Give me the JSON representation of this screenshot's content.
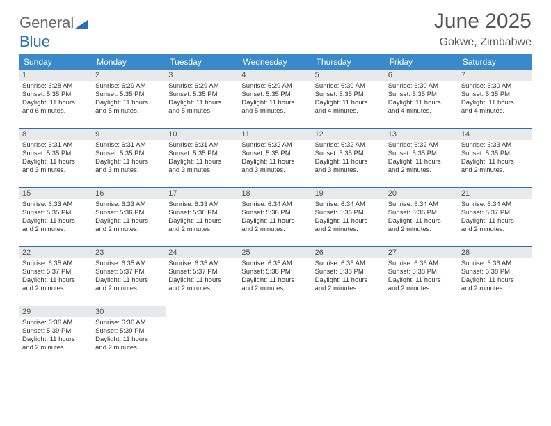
{
  "brand": {
    "part1": "General",
    "part2": "Blue"
  },
  "title": "June 2025",
  "location": "Gokwe, Zimbabwe",
  "colors": {
    "header_band": "#3a8ac9",
    "week_divider": "#2b6fb3",
    "daynum_bg": "#e8e9ea",
    "text": "#333333",
    "title": "#555555"
  },
  "day_headers": [
    "Sunday",
    "Monday",
    "Tuesday",
    "Wednesday",
    "Thursday",
    "Friday",
    "Saturday"
  ],
  "weeks": [
    [
      {
        "n": "1",
        "sr": "Sunrise: 6:28 AM",
        "ss": "Sunset: 5:35 PM",
        "d1": "Daylight: 11 hours",
        "d2": "and 6 minutes."
      },
      {
        "n": "2",
        "sr": "Sunrise: 6:29 AM",
        "ss": "Sunset: 5:35 PM",
        "d1": "Daylight: 11 hours",
        "d2": "and 5 minutes."
      },
      {
        "n": "3",
        "sr": "Sunrise: 6:29 AM",
        "ss": "Sunset: 5:35 PM",
        "d1": "Daylight: 11 hours",
        "d2": "and 5 minutes."
      },
      {
        "n": "4",
        "sr": "Sunrise: 6:29 AM",
        "ss": "Sunset: 5:35 PM",
        "d1": "Daylight: 11 hours",
        "d2": "and 5 minutes."
      },
      {
        "n": "5",
        "sr": "Sunrise: 6:30 AM",
        "ss": "Sunset: 5:35 PM",
        "d1": "Daylight: 11 hours",
        "d2": "and 4 minutes."
      },
      {
        "n": "6",
        "sr": "Sunrise: 6:30 AM",
        "ss": "Sunset: 5:35 PM",
        "d1": "Daylight: 11 hours",
        "d2": "and 4 minutes."
      },
      {
        "n": "7",
        "sr": "Sunrise: 6:30 AM",
        "ss": "Sunset: 5:35 PM",
        "d1": "Daylight: 11 hours",
        "d2": "and 4 minutes."
      }
    ],
    [
      {
        "n": "8",
        "sr": "Sunrise: 6:31 AM",
        "ss": "Sunset: 5:35 PM",
        "d1": "Daylight: 11 hours",
        "d2": "and 3 minutes."
      },
      {
        "n": "9",
        "sr": "Sunrise: 6:31 AM",
        "ss": "Sunset: 5:35 PM",
        "d1": "Daylight: 11 hours",
        "d2": "and 3 minutes."
      },
      {
        "n": "10",
        "sr": "Sunrise: 6:31 AM",
        "ss": "Sunset: 5:35 PM",
        "d1": "Daylight: 11 hours",
        "d2": "and 3 minutes."
      },
      {
        "n": "11",
        "sr": "Sunrise: 6:32 AM",
        "ss": "Sunset: 5:35 PM",
        "d1": "Daylight: 11 hours",
        "d2": "and 3 minutes."
      },
      {
        "n": "12",
        "sr": "Sunrise: 6:32 AM",
        "ss": "Sunset: 5:35 PM",
        "d1": "Daylight: 11 hours",
        "d2": "and 3 minutes."
      },
      {
        "n": "13",
        "sr": "Sunrise: 6:32 AM",
        "ss": "Sunset: 5:35 PM",
        "d1": "Daylight: 11 hours",
        "d2": "and 2 minutes."
      },
      {
        "n": "14",
        "sr": "Sunrise: 6:33 AM",
        "ss": "Sunset: 5:35 PM",
        "d1": "Daylight: 11 hours",
        "d2": "and 2 minutes."
      }
    ],
    [
      {
        "n": "15",
        "sr": "Sunrise: 6:33 AM",
        "ss": "Sunset: 5:35 PM",
        "d1": "Daylight: 11 hours",
        "d2": "and 2 minutes."
      },
      {
        "n": "16",
        "sr": "Sunrise: 6:33 AM",
        "ss": "Sunset: 5:36 PM",
        "d1": "Daylight: 11 hours",
        "d2": "and 2 minutes."
      },
      {
        "n": "17",
        "sr": "Sunrise: 6:33 AM",
        "ss": "Sunset: 5:36 PM",
        "d1": "Daylight: 11 hours",
        "d2": "and 2 minutes."
      },
      {
        "n": "18",
        "sr": "Sunrise: 6:34 AM",
        "ss": "Sunset: 5:36 PM",
        "d1": "Daylight: 11 hours",
        "d2": "and 2 minutes."
      },
      {
        "n": "19",
        "sr": "Sunrise: 6:34 AM",
        "ss": "Sunset: 5:36 PM",
        "d1": "Daylight: 11 hours",
        "d2": "and 2 minutes."
      },
      {
        "n": "20",
        "sr": "Sunrise: 6:34 AM",
        "ss": "Sunset: 5:36 PM",
        "d1": "Daylight: 11 hours",
        "d2": "and 2 minutes."
      },
      {
        "n": "21",
        "sr": "Sunrise: 6:34 AM",
        "ss": "Sunset: 5:37 PM",
        "d1": "Daylight: 11 hours",
        "d2": "and 2 minutes."
      }
    ],
    [
      {
        "n": "22",
        "sr": "Sunrise: 6:35 AM",
        "ss": "Sunset: 5:37 PM",
        "d1": "Daylight: 11 hours",
        "d2": "and 2 minutes."
      },
      {
        "n": "23",
        "sr": "Sunrise: 6:35 AM",
        "ss": "Sunset: 5:37 PM",
        "d1": "Daylight: 11 hours",
        "d2": "and 2 minutes."
      },
      {
        "n": "24",
        "sr": "Sunrise: 6:35 AM",
        "ss": "Sunset: 5:37 PM",
        "d1": "Daylight: 11 hours",
        "d2": "and 2 minutes."
      },
      {
        "n": "25",
        "sr": "Sunrise: 6:35 AM",
        "ss": "Sunset: 5:38 PM",
        "d1": "Daylight: 11 hours",
        "d2": "and 2 minutes."
      },
      {
        "n": "26",
        "sr": "Sunrise: 6:35 AM",
        "ss": "Sunset: 5:38 PM",
        "d1": "Daylight: 11 hours",
        "d2": "and 2 minutes."
      },
      {
        "n": "27",
        "sr": "Sunrise: 6:36 AM",
        "ss": "Sunset: 5:38 PM",
        "d1": "Daylight: 11 hours",
        "d2": "and 2 minutes."
      },
      {
        "n": "28",
        "sr": "Sunrise: 6:36 AM",
        "ss": "Sunset: 5:38 PM",
        "d1": "Daylight: 11 hours",
        "d2": "and 2 minutes."
      }
    ],
    [
      {
        "n": "29",
        "sr": "Sunrise: 6:36 AM",
        "ss": "Sunset: 5:39 PM",
        "d1": "Daylight: 11 hours",
        "d2": "and 2 minutes."
      },
      {
        "n": "30",
        "sr": "Sunrise: 6:36 AM",
        "ss": "Sunset: 5:39 PM",
        "d1": "Daylight: 11 hours",
        "d2": "and 2 minutes."
      },
      {
        "empty": true
      },
      {
        "empty": true
      },
      {
        "empty": true
      },
      {
        "empty": true
      },
      {
        "empty": true
      }
    ]
  ]
}
